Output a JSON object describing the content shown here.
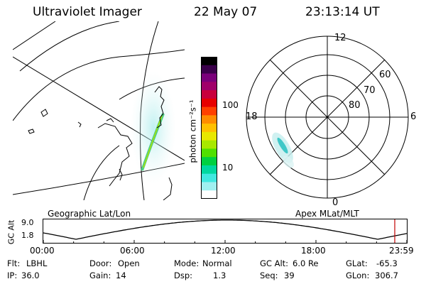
{
  "header": {
    "instrument": "Ultraviolet Imager",
    "date": "22 May 07",
    "time": "23:13:14 UT"
  },
  "panels": {
    "left_label": "Geographic Lat/Lon",
    "right_label": "Apex MLat/MLT"
  },
  "colorbar": {
    "unit_label": "photon cm⁻²s⁻¹",
    "ticks": [
      "100",
      "10"
    ],
    "colors": [
      "#000000",
      "#3a004a",
      "#7a007a",
      "#a0006a",
      "#c8003c",
      "#e60000",
      "#ff4000",
      "#ff8c00",
      "#ffc000",
      "#e8e800",
      "#a8e800",
      "#50e000",
      "#00d040",
      "#00d8a0",
      "#40e8e0",
      "#a0f0f0",
      "#ffffff"
    ]
  },
  "polar_plot": {
    "mlt_labels": {
      "top": "12",
      "left": "18",
      "right": "6",
      "bottom": "0"
    },
    "lat_labels": [
      "60",
      "70",
      "80"
    ]
  },
  "altitude_plot": {
    "y_axis_label": "GC Alt",
    "y_ticks": [
      "9.0",
      "1.8"
    ],
    "x_ticks": [
      "00:00",
      "06:00",
      "12:00",
      "18:00",
      "23:59"
    ],
    "current_time_fraction": 0.9668,
    "marker_color": "#c00000"
  },
  "info": {
    "row1": [
      {
        "label": "Flt:",
        "value": "LBHL"
      },
      {
        "label": "Door:",
        "value": "Open"
      },
      {
        "label": "Mode:",
        "value": "Normal"
      },
      {
        "label": "GC Alt:",
        "value": "6.0 Re"
      },
      {
        "label": "GLat:",
        "value": "-65.3"
      }
    ],
    "row2": [
      {
        "label": "IP:",
        "value": "36.0"
      },
      {
        "label": "Gain:",
        "value": "14"
      },
      {
        "label": "Dsp:",
        "value": "1.3"
      },
      {
        "label": "Seq:",
        "value": "39"
      },
      {
        "label": "GLon:",
        "value": "306.7"
      }
    ]
  }
}
